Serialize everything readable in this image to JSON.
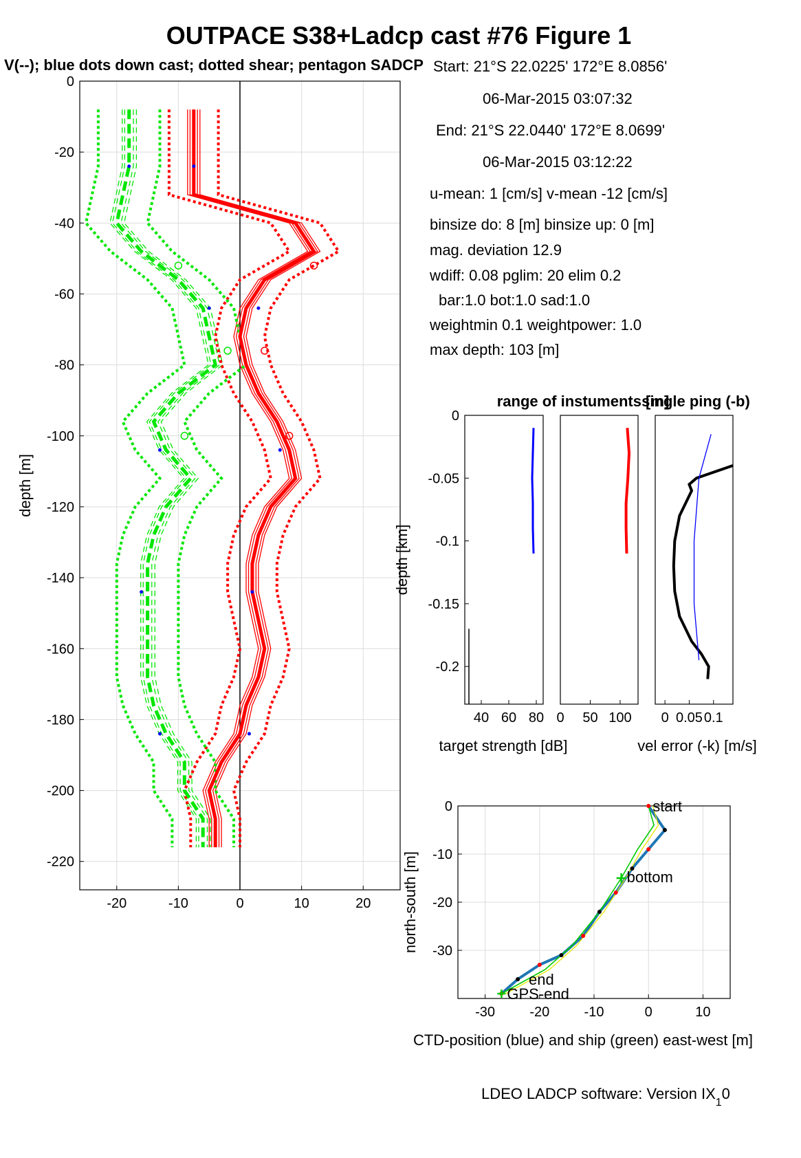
{
  "title": "OUTPACE S38+Ladcp cast #76  Figure 1",
  "subtitle": "V(--); blue dots down cast; dotted shear; pentagon SADCP",
  "info": [
    "Start:  21°S 22.0225'     172°E  8.0856'",
    "06-Mar-2015 03:07:32",
    "End:   21°S 22.0440'     172°E  8.0699'",
    "06-Mar-2015 03:12:22",
    "u-mean:   1 [cm/s]    v-mean -12 [cm/s]",
    "binsize do: 8 [m]  binsize up:  0 [m]",
    "mag. deviation 12.9",
    "wdiff: 0.08  pglim: 20  elim 0.2",
    "bar:1.0 bot:1.0 sad:1.0",
    "weightmin 0.1  weightpower: 1.0",
    "max depth: 103 [m]"
  ],
  "footer": "LDEO LADCP software: Version IX",
  "footer_sub": "1",
  "footer_end": "0",
  "colors": {
    "u": "#ff0000",
    "v": "#00e600",
    "ts": "#0000ff",
    "err": "#000000",
    "ctd": "#1f77b4",
    "ship": "#00cc00"
  },
  "chart_data": [
    {
      "type": "line",
      "name": "velocity-profile",
      "ylabel": "depth [m]",
      "xlim": [
        -26,
        26
      ],
      "ylim": [
        -228,
        0
      ],
      "xticks": [
        -20,
        -10,
        0,
        10,
        20
      ],
      "yticks": [
        0,
        -20,
        -40,
        -60,
        -80,
        -100,
        -120,
        -140,
        -160,
        -180,
        -200,
        -220
      ],
      "depth": [
        -8,
        -16,
        -24,
        -32,
        -40,
        -48,
        -56,
        -64,
        -72,
        -80,
        -88,
        -96,
        -104,
        -112,
        -120,
        -128,
        -136,
        -144,
        -152,
        -160,
        -168,
        -176,
        -184,
        -192,
        -200,
        -208,
        -216
      ],
      "u": [
        -7.5,
        -7.5,
        -7.5,
        -7.5,
        9,
        12,
        4,
        1,
        0,
        1,
        3,
        6,
        8,
        9,
        5,
        3,
        2,
        2,
        3,
        4,
        3,
        1,
        0,
        -3,
        -5,
        -4,
        -4
      ],
      "v": [
        -18,
        -18,
        -18,
        -19,
        -20,
        -16,
        -10,
        -6,
        -5,
        -4,
        -10,
        -14,
        -12,
        -8,
        -12,
        -14,
        -15,
        -15,
        -15,
        -15,
        -15,
        -14,
        -12,
        -9,
        -9,
        -6,
        -6
      ],
      "u_shear_offset": 4,
      "v_shear_offset": 5,
      "sadcp_u": [
        12,
        4,
        8
      ],
      "sadcp_v": [
        -10,
        -2,
        -9
      ],
      "sadcp_depth": [
        -52,
        -76,
        -100
      ],
      "downcast_u": [
        -7.5,
        3,
        6.5,
        2,
        1.5
      ],
      "downcast_v": [
        -18,
        -5,
        -13,
        -16,
        -13
      ],
      "downcast_depth": [
        -24,
        -64,
        -104,
        -144,
        -184
      ]
    },
    {
      "type": "line",
      "name": "target-strength",
      "xlabel": "target strength [dB]",
      "ylabel": "depth [km]",
      "xlim": [
        28,
        85
      ],
      "ylim": [
        -0.23,
        0
      ],
      "xticks": [
        40,
        60,
        80
      ],
      "yticks": [
        0,
        -0.05,
        -0.1,
        -0.15,
        -0.2
      ],
      "depth": [
        -0.01,
        -0.03,
        -0.05,
        -0.07,
        -0.09,
        -0.11
      ],
      "values": [
        78,
        77.5,
        77,
        77.5,
        77.5,
        78
      ]
    },
    {
      "type": "line",
      "name": "range-of-instruments",
      "title": "range of instuments [m]",
      "xlim": [
        0,
        130
      ],
      "ylim": [
        -0.23,
        0
      ],
      "xticks": [
        0,
        50,
        100
      ],
      "depth": [
        -0.01,
        -0.03,
        -0.05,
        -0.07,
        -0.09,
        -0.11
      ],
      "values": [
        112,
        115,
        113,
        110,
        110,
        111
      ]
    },
    {
      "type": "line",
      "name": "velocity-error",
      "title": "single ping (-b)",
      "xlabel": "vel error (-k) [m/s]",
      "xlim": [
        -0.02,
        0.14
      ],
      "ylim": [
        -0.23,
        0
      ],
      "xticks": [
        0,
        0.05,
        0.1
      ],
      "xticklabels": [
        "0",
        "0.05",
        "0.1"
      ],
      "depth": [
        -0.04,
        -0.05,
        -0.055,
        -0.06,
        -0.08,
        -0.1,
        -0.12,
        -0.14,
        -0.16,
        -0.18,
        -0.19,
        -0.2,
        -0.21
      ],
      "values": [
        0.14,
        0.065,
        0.05,
        0.055,
        0.03,
        0.02,
        0.018,
        0.02,
        0.03,
        0.055,
        0.075,
        0.09,
        0.088
      ],
      "single_ping_depth": [
        -0.015,
        -0.05,
        -0.1,
        -0.15,
        -0.195
      ],
      "single_ping": [
        0.095,
        0.07,
        0.06,
        0.06,
        0.07
      ]
    },
    {
      "type": "line",
      "name": "track",
      "xlabel": "CTD-position (blue) and ship (green) east-west [m]",
      "ylabel": "north-south [m]",
      "xlim": [
        -35,
        15
      ],
      "ylim": [
        -40,
        0
      ],
      "xticks": [
        -30,
        -20,
        -10,
        0,
        10
      ],
      "yticks": [
        0,
        -10,
        -20,
        -30
      ],
      "ctd_x": [
        0,
        3,
        0,
        -3,
        -6,
        -9,
        -12,
        -16,
        -20,
        -24,
        -27
      ],
      "ctd_y": [
        0,
        -5,
        -9,
        -13,
        -18,
        -22,
        -27,
        -31,
        -33,
        -36,
        -39
      ],
      "ship_x": [
        0,
        1,
        -2,
        -5,
        -9,
        -14,
        -19,
        -27
      ],
      "ship_y": [
        0,
        -4,
        -9,
        -15,
        -22,
        -29,
        -34,
        -39
      ],
      "labels": [
        "start",
        "bottom",
        "end",
        "GPS-end"
      ]
    }
  ]
}
